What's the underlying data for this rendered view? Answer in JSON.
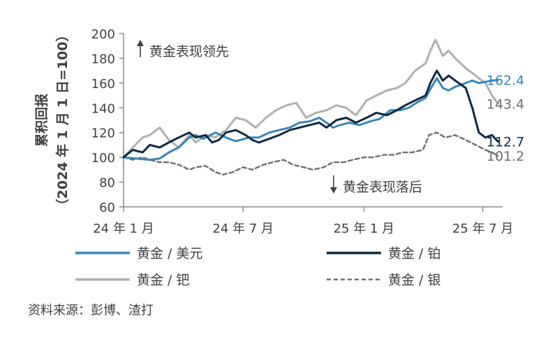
{
  "chart_data": {
    "type": "line",
    "ylabel_line1": "累积回报",
    "ylabel_line2": "（2024 年 1 月 1 日=100）",
    "ylim": [
      60,
      200
    ],
    "yticks": [
      "200",
      "180",
      "160",
      "140",
      "120",
      "100",
      "80",
      "60"
    ],
    "xticks": [
      "24 年 1 月",
      "24 年 7 月",
      "25 年 1 月",
      "25 年 7 月"
    ],
    "x_range": [
      "2024-01-01",
      "2025-07-31"
    ],
    "annotation_up": "黄金表现领先",
    "annotation_down": "黄金表现落后",
    "grid": false,
    "legend_position": "bottom",
    "series": [
      {
        "name": "黄金 / 美元",
        "color": "#3A86B5",
        "dash": "solid",
        "end_label": "162.4",
        "points": [
          [
            "2024-01-01",
            100
          ],
          [
            "2024-01-20",
            99
          ],
          [
            "2024-02-10",
            98
          ],
          [
            "2024-02-25",
            99
          ],
          [
            "2024-03-10",
            104
          ],
          [
            "2024-03-25",
            108
          ],
          [
            "2024-04-10",
            116
          ],
          [
            "2024-04-20",
            118
          ],
          [
            "2024-05-01",
            115
          ],
          [
            "2024-05-20",
            120
          ],
          [
            "2024-06-05",
            116
          ],
          [
            "2024-06-20",
            113
          ],
          [
            "2024-07-10",
            116
          ],
          [
            "2024-07-25",
            116
          ],
          [
            "2024-08-10",
            120
          ],
          [
            "2024-08-25",
            122
          ],
          [
            "2024-09-10",
            124
          ],
          [
            "2024-09-25",
            128
          ],
          [
            "2024-10-10",
            129
          ],
          [
            "2024-10-25",
            132
          ],
          [
            "2024-11-05",
            128
          ],
          [
            "2024-11-15",
            124
          ],
          [
            "2024-11-25",
            126
          ],
          [
            "2024-12-10",
            128
          ],
          [
            "2024-12-25",
            126
          ],
          [
            "2025-01-10",
            129
          ],
          [
            "2025-01-25",
            131
          ],
          [
            "2025-02-10",
            138
          ],
          [
            "2025-02-25",
            138
          ],
          [
            "2025-03-10",
            140
          ],
          [
            "2025-03-25",
            145
          ],
          [
            "2025-04-05",
            148
          ],
          [
            "2025-04-12",
            155
          ],
          [
            "2025-04-22",
            164
          ],
          [
            "2025-05-01",
            156
          ],
          [
            "2025-05-10",
            154
          ],
          [
            "2025-05-20",
            157
          ],
          [
            "2025-06-05",
            160
          ],
          [
            "2025-06-15",
            162
          ],
          [
            "2025-06-25",
            160
          ],
          [
            "2025-07-05",
            161
          ],
          [
            "2025-07-15",
            162
          ],
          [
            "2025-07-24",
            162.4
          ]
        ]
      },
      {
        "name": "黄金 / 铂",
        "color": "#0E2841",
        "dash": "solid",
        "end_label": "112.7",
        "points": [
          [
            "2024-01-01",
            100
          ],
          [
            "2024-01-15",
            106
          ],
          [
            "2024-01-30",
            104
          ],
          [
            "2024-02-10",
            110
          ],
          [
            "2024-02-25",
            108
          ],
          [
            "2024-03-10",
            112
          ],
          [
            "2024-03-25",
            116
          ],
          [
            "2024-04-10",
            120
          ],
          [
            "2024-04-20",
            116
          ],
          [
            "2024-05-05",
            118
          ],
          [
            "2024-05-15",
            112
          ],
          [
            "2024-05-25",
            114
          ],
          [
            "2024-06-05",
            120
          ],
          [
            "2024-06-20",
            122
          ],
          [
            "2024-07-05",
            118
          ],
          [
            "2024-07-15",
            114
          ],
          [
            "2024-07-25",
            112
          ],
          [
            "2024-08-10",
            115
          ],
          [
            "2024-08-25",
            118
          ],
          [
            "2024-09-10",
            122
          ],
          [
            "2024-09-25",
            124
          ],
          [
            "2024-10-10",
            126
          ],
          [
            "2024-10-25",
            128
          ],
          [
            "2024-11-05",
            124
          ],
          [
            "2024-11-20",
            130
          ],
          [
            "2024-12-05",
            132
          ],
          [
            "2024-12-20",
            128
          ],
          [
            "2025-01-05",
            132
          ],
          [
            "2025-01-20",
            136
          ],
          [
            "2025-02-05",
            134
          ],
          [
            "2025-02-20",
            138
          ],
          [
            "2025-03-05",
            142
          ],
          [
            "2025-03-20",
            146
          ],
          [
            "2025-04-05",
            150
          ],
          [
            "2025-04-12",
            160
          ],
          [
            "2025-04-22",
            170
          ],
          [
            "2025-05-01",
            162
          ],
          [
            "2025-05-10",
            166
          ],
          [
            "2025-05-20",
            162
          ],
          [
            "2025-06-05",
            156
          ],
          [
            "2025-06-15",
            140
          ],
          [
            "2025-06-25",
            120
          ],
          [
            "2025-07-05",
            116
          ],
          [
            "2025-07-15",
            118
          ],
          [
            "2025-07-24",
            112.7
          ]
        ]
      },
      {
        "name": "黄金 / 钯",
        "color": "#B0B0B0",
        "dash": "solid",
        "end_label": "143.4",
        "points": [
          [
            "2024-01-01",
            100
          ],
          [
            "2024-01-15",
            108
          ],
          [
            "2024-01-30",
            116
          ],
          [
            "2024-02-10",
            118
          ],
          [
            "2024-02-25",
            124
          ],
          [
            "2024-03-10",
            114
          ],
          [
            "2024-03-25",
            108
          ],
          [
            "2024-04-10",
            118
          ],
          [
            "2024-04-20",
            112
          ],
          [
            "2024-05-05",
            118
          ],
          [
            "2024-05-20",
            116
          ],
          [
            "2024-06-05",
            122
          ],
          [
            "2024-06-20",
            132
          ],
          [
            "2024-07-05",
            130
          ],
          [
            "2024-07-20",
            124
          ],
          [
            "2024-08-05",
            132
          ],
          [
            "2024-08-20",
            138
          ],
          [
            "2024-09-05",
            142
          ],
          [
            "2024-09-20",
            144
          ],
          [
            "2024-10-05",
            132
          ],
          [
            "2024-10-20",
            136
          ],
          [
            "2024-11-05",
            138
          ],
          [
            "2024-11-20",
            142
          ],
          [
            "2024-12-05",
            140
          ],
          [
            "2024-12-20",
            134
          ],
          [
            "2025-01-05",
            146
          ],
          [
            "2025-01-20",
            150
          ],
          [
            "2025-02-05",
            154
          ],
          [
            "2025-02-20",
            156
          ],
          [
            "2025-03-05",
            160
          ],
          [
            "2025-03-20",
            170
          ],
          [
            "2025-04-05",
            176
          ],
          [
            "2025-04-12",
            186
          ],
          [
            "2025-04-20",
            195
          ],
          [
            "2025-05-01",
            182
          ],
          [
            "2025-05-10",
            186
          ],
          [
            "2025-05-20",
            180
          ],
          [
            "2025-06-05",
            172
          ],
          [
            "2025-06-20",
            166
          ],
          [
            "2025-07-05",
            160
          ],
          [
            "2025-07-15",
            150
          ],
          [
            "2025-07-24",
            143.4
          ]
        ]
      },
      {
        "name": "黄金 / 银",
        "color": "#6E6E6E",
        "dash": "dashed",
        "end_label": "101.2",
        "points": [
          [
            "2024-01-01",
            100
          ],
          [
            "2024-01-15",
            98
          ],
          [
            "2024-01-30",
            100
          ],
          [
            "2024-02-10",
            98
          ],
          [
            "2024-02-25",
            96
          ],
          [
            "2024-03-10",
            96
          ],
          [
            "2024-03-25",
            94
          ],
          [
            "2024-04-10",
            90
          ],
          [
            "2024-04-20",
            92
          ],
          [
            "2024-05-05",
            93
          ],
          [
            "2024-05-20",
            88
          ],
          [
            "2024-06-01",
            86
          ],
          [
            "2024-06-15",
            88
          ],
          [
            "2024-07-01",
            92
          ],
          [
            "2024-07-15",
            90
          ],
          [
            "2024-08-01",
            94
          ],
          [
            "2024-08-15",
            96
          ],
          [
            "2024-09-01",
            98
          ],
          [
            "2024-09-15",
            94
          ],
          [
            "2024-10-01",
            92
          ],
          [
            "2024-10-15",
            90
          ],
          [
            "2024-11-01",
            92
          ],
          [
            "2024-11-15",
            96
          ],
          [
            "2024-12-01",
            96
          ],
          [
            "2024-12-15",
            98
          ],
          [
            "2025-01-01",
            100
          ],
          [
            "2025-01-15",
            100
          ],
          [
            "2025-02-01",
            102
          ],
          [
            "2025-02-15",
            102
          ],
          [
            "2025-03-01",
            104
          ],
          [
            "2025-03-15",
            104
          ],
          [
            "2025-04-01",
            106
          ],
          [
            "2025-04-10",
            118
          ],
          [
            "2025-04-22",
            120
          ],
          [
            "2025-05-05",
            116
          ],
          [
            "2025-05-20",
            118
          ],
          [
            "2025-06-05",
            114
          ],
          [
            "2025-06-20",
            110
          ],
          [
            "2025-07-05",
            106
          ],
          [
            "2025-07-15",
            104
          ],
          [
            "2025-07-24",
            101.2
          ]
        ]
      }
    ]
  },
  "source": "资料来源：彭博、渣打"
}
